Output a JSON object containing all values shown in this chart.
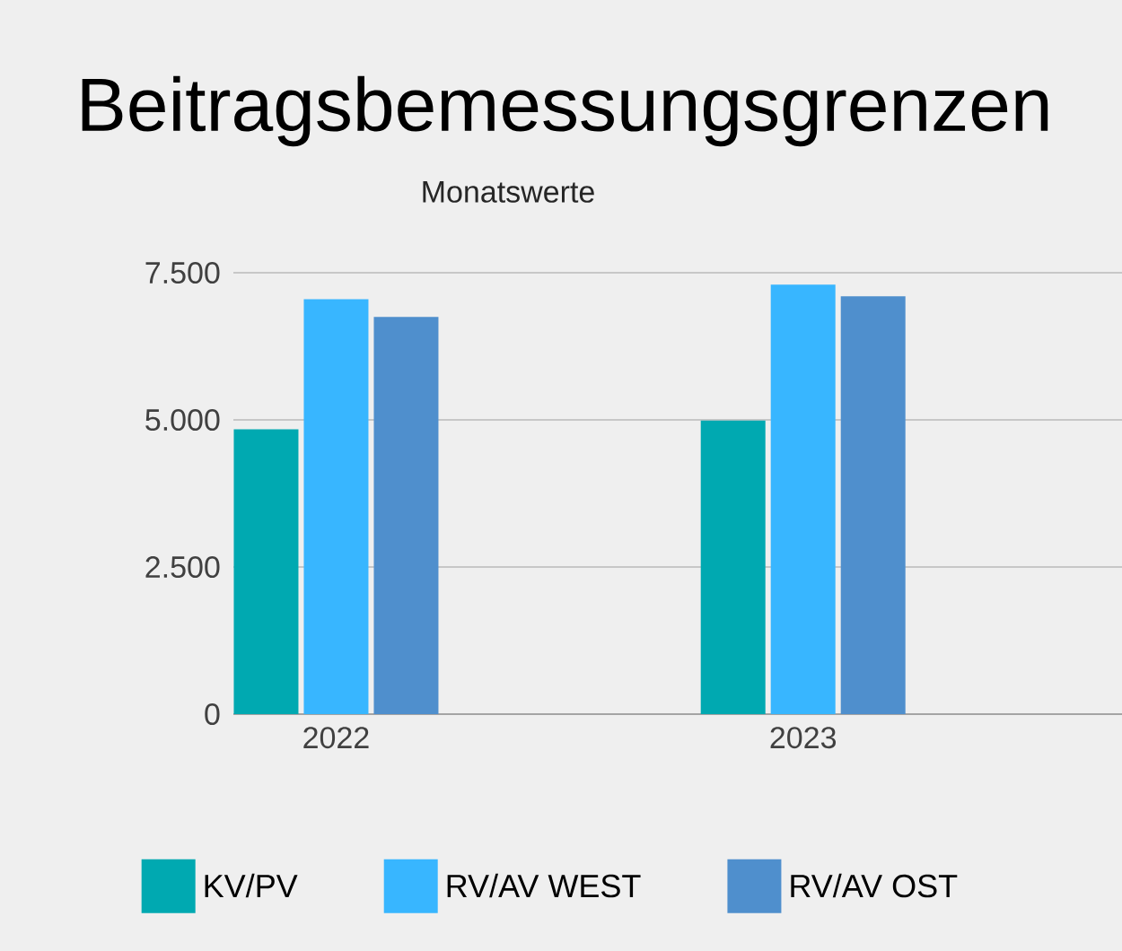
{
  "chart_data": {
    "type": "bar",
    "title": "Beitragsbemessungsgrenzen",
    "subtitle": "Monatswerte",
    "categories": [
      "2022",
      "2023"
    ],
    "series": [
      {
        "name": "KV/PV",
        "color": "#00a9b1",
        "values": [
          4840,
          4990
        ]
      },
      {
        "name": "RV/AV WEST",
        "color": "#38b6ff",
        "values": [
          7050,
          7300
        ]
      },
      {
        "name": "RV/AV OST",
        "color": "#4f8fcd",
        "values": [
          6750,
          7100
        ]
      }
    ],
    "ylim": [
      0,
      7500
    ],
    "yticks": [
      0,
      {
        "value": 2500,
        "label": "2.500"
      },
      {
        "value": 5000,
        "label": "5.000"
      },
      {
        "value": 7500,
        "label": "7.500"
      }
    ],
    "grid": "y",
    "legend": "bottom"
  }
}
